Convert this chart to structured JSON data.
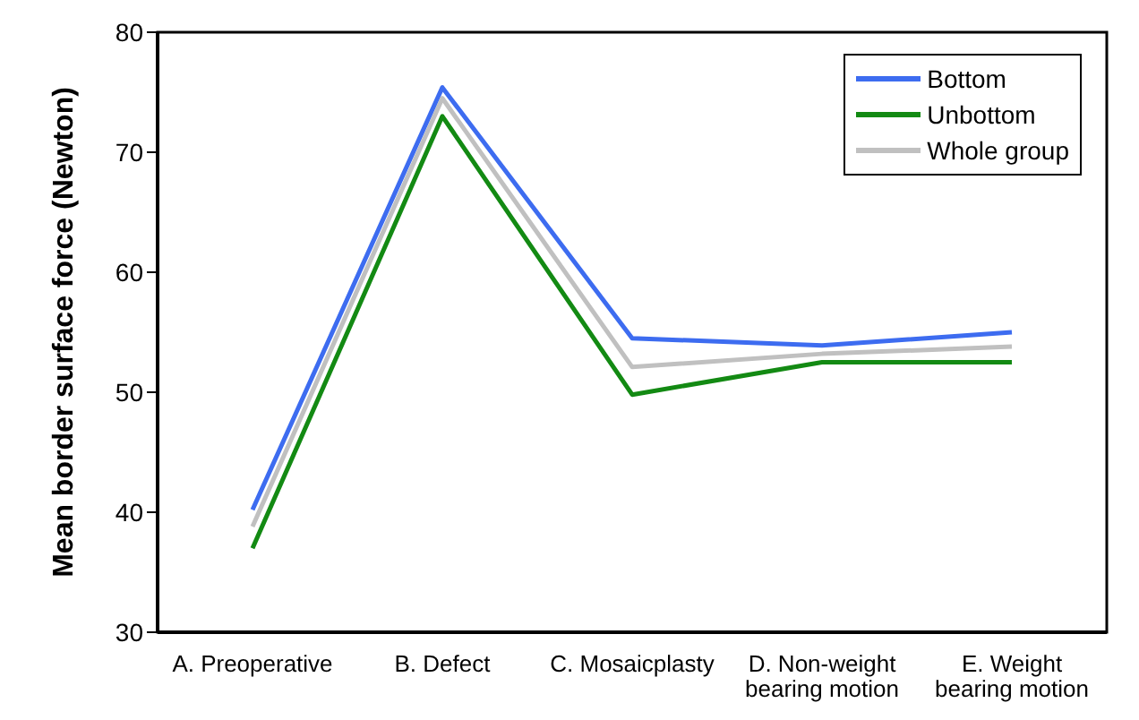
{
  "chart_data": {
    "type": "line",
    "ylabel": "Mean border surface force (Newton)",
    "categories": [
      "A. Preoperative",
      "B. Defect",
      "C. Mosaicplasty",
      "D. Non-weight bearing motion",
      "E. Weight bearing motion"
    ],
    "series": [
      {
        "name": "Bottom",
        "color": "#3d6cf0",
        "values": [
          40.2,
          75.4,
          54.5,
          53.9,
          55.0
        ]
      },
      {
        "name": "Unbottom",
        "color": "#138a13",
        "values": [
          37.0,
          73.0,
          49.8,
          52.5,
          52.5
        ]
      },
      {
        "name": "Whole group",
        "color": "#c0c0c0",
        "values": [
          38.8,
          74.5,
          52.1,
          53.2,
          53.8
        ]
      }
    ],
    "ylim": [
      30,
      80
    ],
    "yticks": [
      30,
      40,
      50,
      60,
      70,
      80
    ],
    "grid": false,
    "legend": "top right",
    "marker": "none",
    "line_style": "solid"
  }
}
